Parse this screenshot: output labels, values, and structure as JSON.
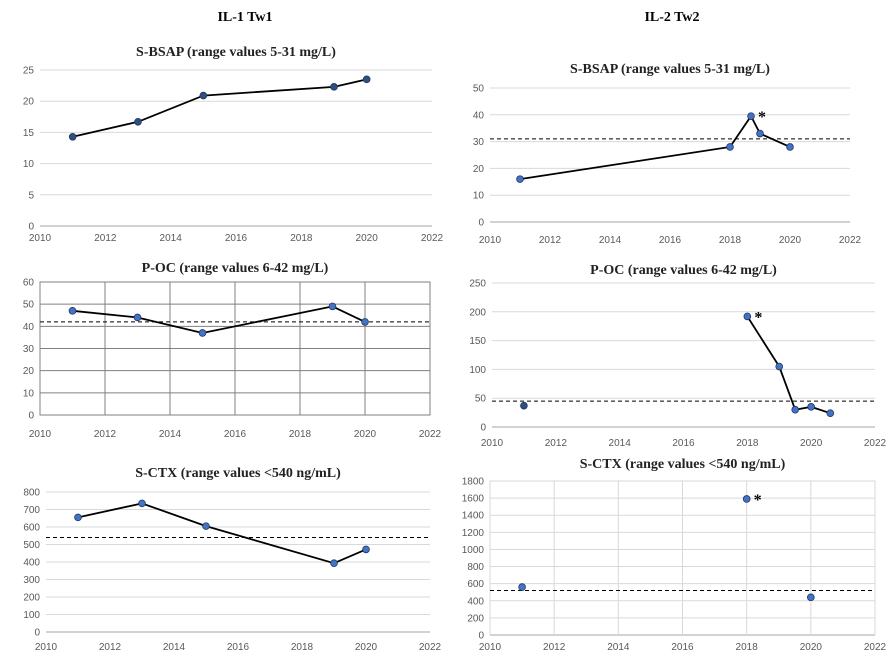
{
  "columns": [
    {
      "title": "IL-1 Tw1"
    },
    {
      "title": "IL-2 Tw2"
    }
  ],
  "chart_data": [
    {
      "type": "line",
      "title": "S-BSAP (range values 5-31 mg/L)",
      "xlim": [
        2010,
        2022
      ],
      "xticks": [
        2010,
        2012,
        2014,
        2016,
        2018,
        2020,
        2022
      ],
      "ylim": [
        0,
        25
      ],
      "yticks": [
        0,
        5,
        10,
        15,
        20,
        25
      ],
      "grid": "horizontal",
      "series": [
        {
          "x": [
            2011,
            2013,
            2015,
            2019,
            2020
          ],
          "y": [
            14.3,
            16.7,
            20.9,
            22.3,
            23.5
          ],
          "line": true,
          "marker_color": "#2f4f7f"
        }
      ],
      "reference_line": null,
      "annotations": []
    },
    {
      "type": "line",
      "title": "S-BSAP (range values 5-31 mg/L)",
      "xlim": [
        2010,
        2022
      ],
      "xticks": [
        2010,
        2012,
        2014,
        2016,
        2018,
        2020,
        2022
      ],
      "ylim": [
        0,
        50
      ],
      "yticks": [
        0,
        10,
        20,
        30,
        40,
        50
      ],
      "grid": "horizontal",
      "series": [
        {
          "x": [
            2011,
            2018,
            2018.7,
            2019,
            2020
          ],
          "y": [
            16,
            28,
            39.5,
            33,
            28
          ],
          "line": true,
          "marker_color": "#4472c4"
        }
      ],
      "reference_line": 31,
      "annotations": [
        {
          "text": "*",
          "x": 2018.7,
          "y": 39.5
        }
      ]
    },
    {
      "type": "line",
      "title": "P-OC (range values 6-42 mg/L)",
      "xlim": [
        2010,
        2022
      ],
      "xticks": [
        2010,
        2012,
        2014,
        2016,
        2018,
        2020,
        2022
      ],
      "ylim": [
        0,
        60
      ],
      "yticks": [
        0,
        10,
        20,
        30,
        40,
        50,
        60
      ],
      "grid": "box",
      "series": [
        {
          "x": [
            2011,
            2013,
            2015,
            2019,
            2020
          ],
          "y": [
            47,
            44,
            37,
            49,
            42
          ],
          "line": true,
          "marker_color": "#4472c4"
        }
      ],
      "reference_line": 42,
      "annotations": []
    },
    {
      "type": "line",
      "title": "P-OC (range values 6-42 mg/L)",
      "xlim": [
        2010,
        2022
      ],
      "xticks": [
        2010,
        2012,
        2014,
        2016,
        2018,
        2020,
        2022
      ],
      "ylim": [
        0,
        250
      ],
      "yticks": [
        0,
        50,
        100,
        150,
        200,
        250
      ],
      "grid": "horizontal",
      "series": [
        {
          "x": [
            2011
          ],
          "y": [
            37
          ],
          "line": false,
          "marker_color": "#2f4f7f"
        },
        {
          "x": [
            2018,
            2019,
            2019.5,
            2020,
            2020.6
          ],
          "y": [
            192,
            105,
            30,
            35,
            24
          ],
          "line": true,
          "marker_color": "#4472c4"
        }
      ],
      "reference_line": 45,
      "annotations": [
        {
          "text": "*",
          "x": 2018,
          "y": 192
        }
      ]
    },
    {
      "type": "line",
      "title": "S-CTX (range values <540 ng/mL)",
      "xlim": [
        2010,
        2022
      ],
      "xticks": [
        2010,
        2012,
        2014,
        2016,
        2018,
        2020,
        2022
      ],
      "ylim": [
        0,
        800
      ],
      "yticks": [
        0,
        100,
        200,
        300,
        400,
        500,
        600,
        700,
        800
      ],
      "grid": "horizontal",
      "series": [
        {
          "x": [
            2011,
            2013,
            2015,
            2019,
            2020
          ],
          "y": [
            655,
            735,
            605,
            393,
            472
          ],
          "line": true,
          "marker_color": "#4472c4"
        }
      ],
      "reference_line": 540,
      "annotations": []
    },
    {
      "type": "scatter",
      "title": "S-CTX (range values <540 ng/mL)",
      "xlim": [
        2010,
        2022
      ],
      "xticks": [
        2010,
        2012,
        2014,
        2016,
        2018,
        2020,
        2022
      ],
      "ylim": [
        0,
        1800
      ],
      "yticks": [
        0,
        200,
        400,
        600,
        800,
        1000,
        1200,
        1400,
        1600,
        1800
      ],
      "grid": "both",
      "series": [
        {
          "x": [
            2011,
            2018,
            2020
          ],
          "y": [
            560,
            1590,
            440
          ],
          "line": false,
          "marker_color": "#4472c4"
        }
      ],
      "reference_line": 520,
      "annotations": [
        {
          "text": "*",
          "x": 2018,
          "y": 1590
        }
      ]
    }
  ]
}
